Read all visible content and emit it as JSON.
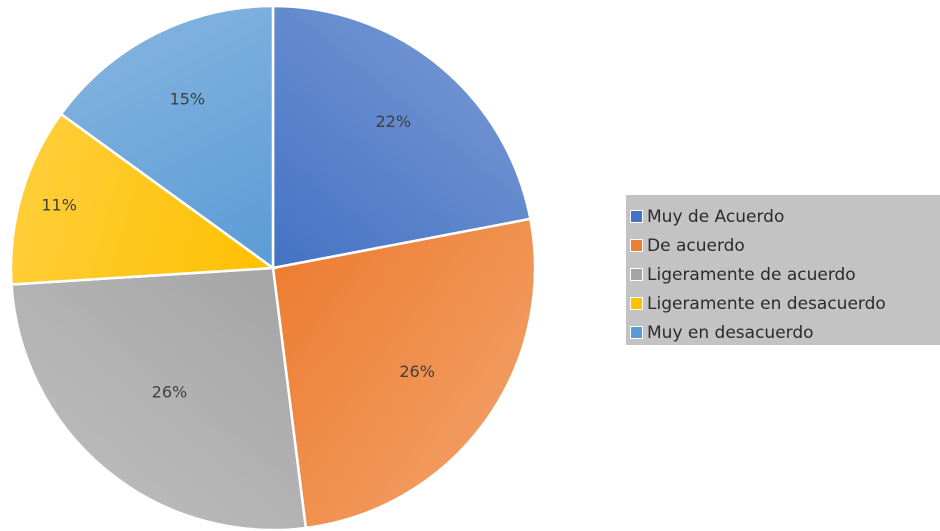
{
  "chart_data": {
    "type": "pie",
    "title": "",
    "categories": [
      "Muy de Acuerdo",
      "De acuerdo",
      "Ligeramente de acuerdo",
      "Ligeramente en desacuerdo",
      "Muy en desacuerdo"
    ],
    "values": [
      22,
      26,
      26,
      11,
      15
    ],
    "value_labels": [
      "22%",
      "26%",
      "26%",
      "11%",
      "15%"
    ],
    "colors": [
      "#4472c4",
      "#ed7d31",
      "#a5a5a5",
      "#ffc000",
      "#5b9bd5"
    ],
    "start_angle_deg": 0,
    "direction": "clockwise",
    "legend_placement": "right",
    "legend": {
      "items": [
        {
          "label": "Muy de Acuerdo",
          "color": "#4472c4"
        },
        {
          "label": "De acuerdo",
          "color": "#ed7d31"
        },
        {
          "label": "Ligeramente de acuerdo",
          "color": "#a5a5a5"
        },
        {
          "label": "Ligeramente en desacuerdo",
          "color": "#ffc000"
        },
        {
          "label": "Muy en desacuerdo",
          "color": "#5b9bd5"
        }
      ]
    }
  }
}
